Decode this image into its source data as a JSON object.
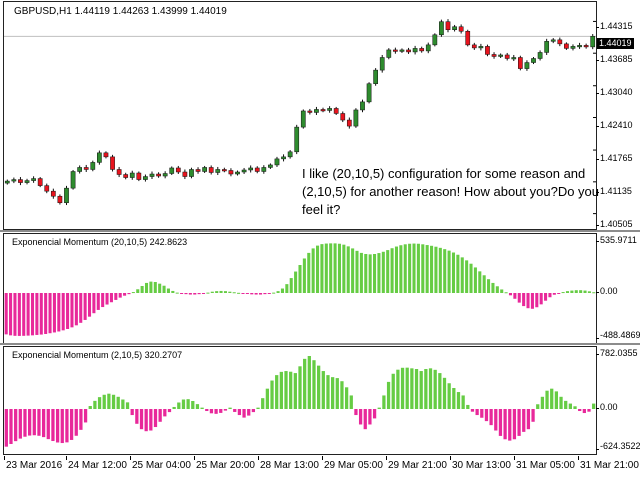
{
  "symbol_info": "GBPUSD,H1  1.44119 1.44263 1.43999 1.44019",
  "price_axis": [
    "1.44315",
    "1.43685",
    "1.43040",
    "1.42410",
    "1.41765",
    "1.41135",
    "1.40505"
  ],
  "price_values": [
    1.44315,
    1.43685,
    1.4304,
    1.4241,
    1.41765,
    1.41135,
    1.40505
  ],
  "current_price": "1.44019",
  "current_price_value": 1.44019,
  "annotation": "I like (20,10,5) configuration for some reason and (2,10,5) for another reason! How about you?Do you feel it?",
  "osc1": {
    "title": "Exponencial Momentum (20,10,5) 242.8623",
    "axis_max": "535.9711",
    "axis_zero": "0.00",
    "axis_min": "-488.4869",
    "max_value": 535.9711,
    "min_value": -488.4869
  },
  "osc2": {
    "title": "Exponencial Momentum (2,10,5) 320.2707",
    "axis_max": "782.0355",
    "axis_zero": "0.00",
    "axis_min": "-624.3522",
    "max_value": 782.0355,
    "min_value": -624.3522
  },
  "time_axis": [
    "23 Mar 2016",
    "24 Mar 12:00",
    "25 Mar 04:00",
    "25 Mar 20:00",
    "28 Mar 13:00",
    "29 Mar 05:00",
    "29 Mar 21:00",
    "30 Mar 13:00",
    "31 Mar 05:00",
    "31 Mar 21:00"
  ],
  "colors": {
    "bull_candle": "#2e8b2e",
    "bear_candle": "#e8141e",
    "hist_positive": "#66cc44",
    "hist_negative": "#e8289a"
  },
  "chart_data": [
    {
      "type": "candlestick",
      "title": "GBPUSD,H1",
      "ylim": [
        1.402,
        1.447
      ],
      "close": [
        1.4115,
        1.4118,
        1.4112,
        1.4116,
        1.412,
        1.4106,
        1.4095,
        1.4085,
        1.4072,
        1.4101,
        1.4134,
        1.4142,
        1.4138,
        1.4152,
        1.4171,
        1.4163,
        1.4138,
        1.4128,
        1.4122,
        1.4131,
        1.4118,
        1.4124,
        1.4129,
        1.4125,
        1.413,
        1.4141,
        1.4133,
        1.4124,
        1.4138,
        1.4134,
        1.4142,
        1.4132,
        1.4138,
        1.4136,
        1.4129,
        1.4133,
        1.4137,
        1.4141,
        1.4134,
        1.4142,
        1.4147,
        1.4159,
        1.4163,
        1.4173,
        1.4222,
        1.4254,
        1.4251,
        1.4257,
        1.4255,
        1.4259,
        1.4249,
        1.4236,
        1.4224,
        1.4256,
        1.4272,
        1.4308,
        1.4335,
        1.436,
        1.4375,
        1.4372,
        1.4375,
        1.4371,
        1.4378,
        1.4373,
        1.4385,
        1.4405,
        1.4431,
        1.4415,
        1.4421,
        1.4412,
        1.4385,
        1.4379,
        1.4382,
        1.4366,
        1.4362,
        1.4365,
        1.4358,
        1.436,
        1.4338,
        1.435,
        1.4358,
        1.437,
        1.4392,
        1.4395,
        1.4387,
        1.4378,
        1.4382,
        1.4384,
        1.4381,
        1.4402
      ],
      "x_labels": [
        "23 Mar 2016",
        "24 Mar 12:00",
        "25 Mar 04:00",
        "25 Mar 20:00",
        "28 Mar 13:00",
        "29 Mar 05:00",
        "29 Mar 21:00",
        "30 Mar 13:00",
        "31 Mar 05:00",
        "31 Mar 21:00"
      ],
      "y_ticks": [
        1.44315,
        1.43685,
        1.4304,
        1.4241,
        1.41765,
        1.41135,
        1.40505
      ]
    },
    {
      "type": "bar",
      "title": "Exponencial Momentum (20,10,5) 242.8623",
      "ylim": [
        -488.4869,
        535.9711
      ],
      "values": [
        -430,
        -440,
        -445,
        -446,
        -445,
        -443,
        -440,
        -436,
        -432,
        -426,
        -418,
        -410,
        -400,
        -388,
        -374,
        -357,
        -336,
        -310,
        -280,
        -246,
        -210,
        -176,
        -146,
        -120,
        -96,
        -72,
        -48,
        -28,
        -12,
        10,
        40,
        75,
        108,
        122,
        118,
        100,
        78,
        48,
        22,
        4,
        -6,
        -12,
        -16,
        -16,
        -12,
        -6,
        4,
        14,
        20,
        22,
        20,
        14,
        8,
        2,
        -4,
        -10,
        -14,
        -16,
        -16,
        -12,
        -6,
        4,
        20,
        48,
        95,
        160,
        230,
        300,
        370,
        430,
        478,
        508,
        524,
        530,
        532,
        532,
        528,
        518,
        500,
        478,
        452,
        430,
        418,
        414,
        418,
        428,
        442,
        460,
        480,
        498,
        512,
        522,
        528,
        530,
        528,
        522,
        514,
        506,
        496,
        484,
        470,
        454,
        434,
        410,
        382,
        350,
        314,
        274,
        232,
        190,
        148,
        108,
        72,
        38,
        8,
        -24,
        -60,
        -100,
        -136,
        -158,
        -164,
        -148,
        -118,
        -80,
        -44,
        -18,
        -2,
        10,
        20,
        26,
        30,
        30,
        26,
        18,
        8
      ]
    },
    {
      "type": "bar",
      "title": "Exponencial Momentum (2,10,5) 320.2707",
      "ylim": [
        -624.3522,
        782.0355
      ],
      "values": [
        -560,
        -520,
        -478,
        -440,
        -412,
        -395,
        -390,
        -398,
        -418,
        -448,
        -476,
        -498,
        -506,
        -496,
        -460,
        -398,
        -310,
        -200,
        44,
        120,
        175,
        210,
        226,
        210,
        180,
        140,
        98,
        -90,
        -220,
        -300,
        -330,
        -320,
        -268,
        -190,
        -110,
        -46,
        30,
        96,
        140,
        145,
        118,
        72,
        20,
        -30,
        -64,
        -72,
        -58,
        -24,
        20,
        -44,
        -90,
        -128,
        -98,
        -46,
        20,
        160,
        300,
        420,
        500,
        548,
        560,
        550,
        530,
        630,
        740,
        782,
        720,
        640,
        560,
        500,
        470,
        456,
        410,
        320,
        200,
        -90,
        -230,
        -300,
        -230,
        -140,
        20,
        200,
        400,
        520,
        580,
        608,
        610,
        600,
        590,
        560,
        590,
        600,
        578,
        530,
        460,
        380,
        310,
        250,
        200,
        60,
        -40,
        -90,
        -130,
        -180,
        -240,
        -320,
        -400,
        -450,
        -470,
        -450,
        -400,
        -340,
        -300,
        -190,
        70,
        180,
        270,
        300,
        260,
        180,
        120,
        80,
        40,
        -30,
        -60,
        -40,
        80
      ]
    }
  ]
}
